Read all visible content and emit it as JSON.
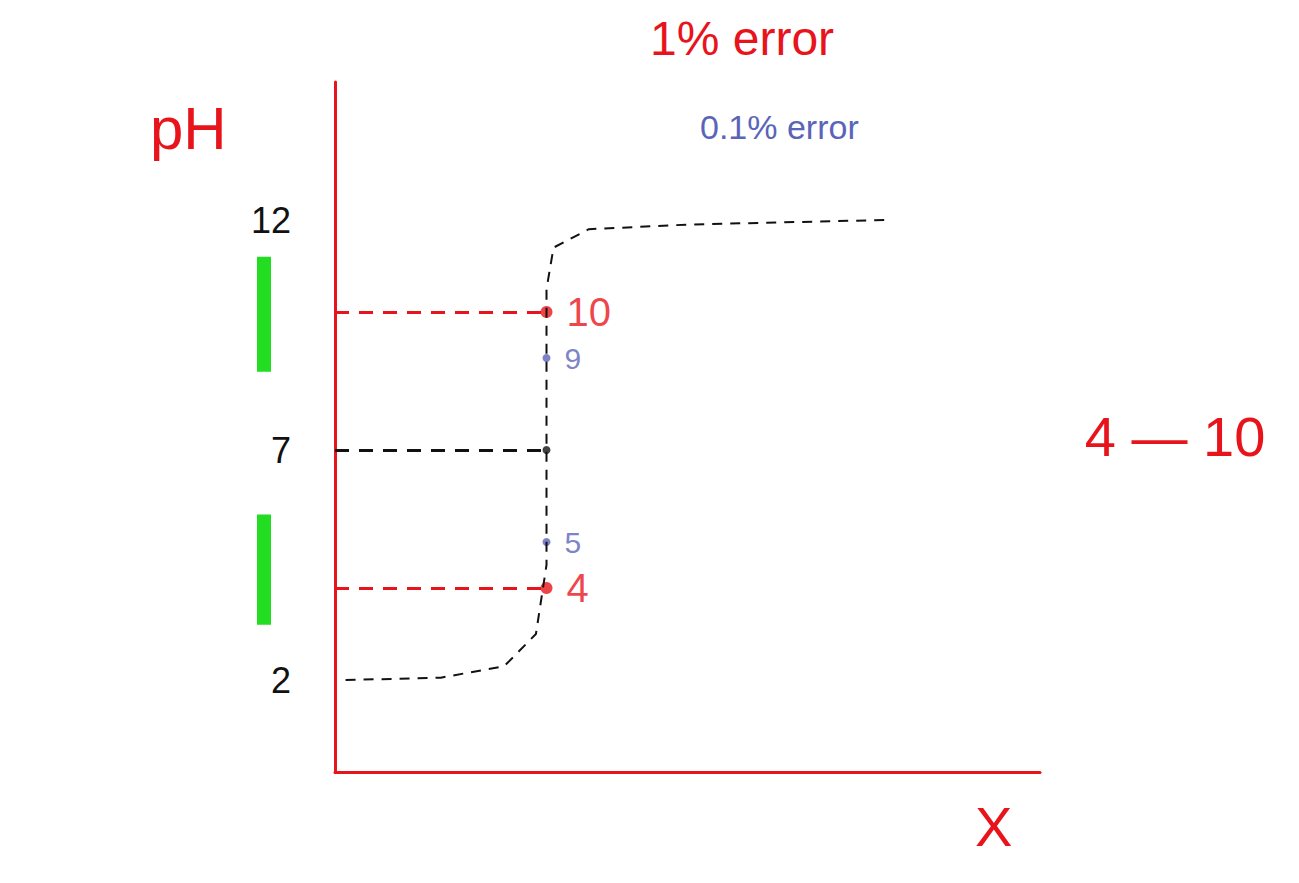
{
  "chart_data": {
    "type": "line",
    "x_label": "X",
    "y_label": "pH",
    "y_label_color": "#e8141c",
    "x_label_color": "#e8141c",
    "xlim": [
      0,
      10
    ],
    "ylim": [
      0,
      15
    ],
    "yticks": [
      2,
      7,
      12
    ],
    "tick_labels": "y",
    "grid": false,
    "annotations": [
      {
        "text": "1% error",
        "color": "#e8141c"
      },
      {
        "text": "0.1% error",
        "color": "#5a64b8"
      },
      {
        "text": "4 — 10",
        "color": "#e8141c"
      }
    ],
    "ranges": {
      "color": "#22dd22",
      "values": [
        [
          3.2,
          5.6
        ],
        [
          8.7,
          11.2
        ]
      ]
    },
    "series": [
      {
        "type": "line",
        "color": "#111111",
        "line_style": "dashed",
        "marker": "none",
        "data_labels": false,
        "x": [
          0.15,
          1.5,
          2.4,
          2.85,
          3.0,
          3.0,
          3.1,
          3.6,
          5.0,
          7.8
        ],
        "values": [
          2,
          2.05,
          2.3,
          3,
          4.5,
          10.5,
          11.4,
          11.8,
          11.9,
          12
        ]
      },
      {
        "type": "scatter",
        "color": "#e8141c",
        "marker": "circle",
        "line_style": "dashed",
        "data_labels": true,
        "x": [
          3,
          3
        ],
        "values": [
          10,
          4
        ]
      },
      {
        "type": "scatter",
        "color": "#5a64b8",
        "marker": "circle",
        "data_labels": true,
        "x": [
          3,
          3
        ],
        "values": [
          9,
          5
        ]
      },
      {
        "type": "scatter",
        "color": "#111111",
        "marker": "circle",
        "line_style": "dashed",
        "data_labels": false,
        "x": [
          3
        ],
        "values": [
          7
        ]
      }
    ]
  }
}
